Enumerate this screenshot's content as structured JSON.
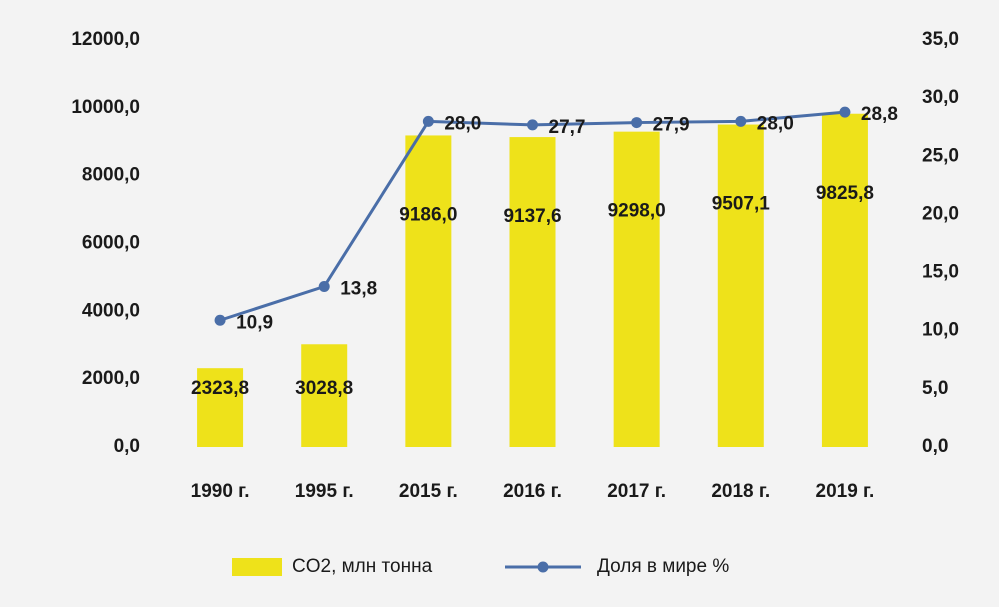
{
  "chart_data": {
    "type": "bar_line",
    "categories": [
      "1990 г.",
      "1995 г.",
      "2015 г.",
      "2016 г.",
      "2017 г.",
      "2018 г.",
      "2019 г."
    ],
    "series": [
      {
        "name": "CO2, млн тонна",
        "color": "#eee21a",
        "type": "bar",
        "values": [
          2323.8,
          3028.8,
          9186.0,
          9137.6,
          9298.0,
          9507.1,
          9825.8
        ],
        "value_labels": [
          "2323,8",
          "3028,8",
          "9186,0",
          "9137,6",
          "9298,0",
          "9507,1",
          "9825,8"
        ]
      },
      {
        "name": "Доля в мире %",
        "color": "#4a6ea8",
        "type": "line",
        "axis": "y2",
        "values": [
          10.9,
          13.8,
          28.0,
          27.7,
          27.9,
          28.0,
          28.8
        ],
        "value_labels": [
          "10,9",
          "13,8",
          "28,0",
          "27,7",
          "27,9",
          "28,0",
          "28,8"
        ]
      }
    ],
    "ylim": [
      0,
      12000
    ],
    "yticks": [
      {
        "value": 0,
        "label": "0,0"
      },
      {
        "value": 2000,
        "label": "2000,0"
      },
      {
        "value": 4000,
        "label": "4000,0"
      },
      {
        "value": 6000,
        "label": "6000,0"
      },
      {
        "value": 8000,
        "label": "8000,0"
      },
      {
        "value": 10000,
        "label": "10000,0"
      },
      {
        "value": 12000,
        "label": "12000,0"
      }
    ],
    "y2lim": [
      0,
      35
    ],
    "y2ticks": [
      {
        "value": 0,
        "label": "0,0"
      },
      {
        "value": 5,
        "label": "5,0"
      },
      {
        "value": 10,
        "label": "10,0"
      },
      {
        "value": 15,
        "label": "15,0"
      },
      {
        "value": 20,
        "label": "20,0"
      },
      {
        "value": 25,
        "label": "25,0"
      },
      {
        "value": 30,
        "label": "30,0"
      },
      {
        "value": 35,
        "label": "35,0"
      }
    ],
    "legend": "bottom"
  }
}
